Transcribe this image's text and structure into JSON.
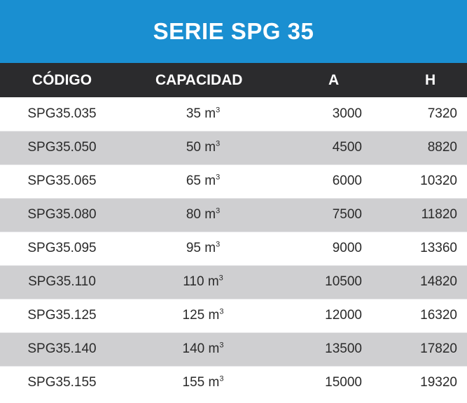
{
  "title": "SERIE SPG 35",
  "headers": {
    "code": "CÓDIGO",
    "capacity": "CAPACIDAD",
    "a": "A",
    "h": "H"
  },
  "unit": {
    "base": "m",
    "exponent": "3"
  },
  "rows": [
    {
      "code": "SPG35.035",
      "capacity": "35",
      "a": "3000",
      "h": "7320"
    },
    {
      "code": "SPG35.050",
      "capacity": "50",
      "a": "4500",
      "h": "8820"
    },
    {
      "code": "SPG35.065",
      "capacity": "65",
      "a": "6000",
      "h": "10320"
    },
    {
      "code": "SPG35.080",
      "capacity": "80",
      "a": "7500",
      "h": "11820"
    },
    {
      "code": "SPG35.095",
      "capacity": "95",
      "a": "9000",
      "h": "13360"
    },
    {
      "code": "SPG35.110",
      "capacity": "110",
      "a": "10500",
      "h": "14820"
    },
    {
      "code": "SPG35.125",
      "capacity": "125",
      "a": "12000",
      "h": "16320"
    },
    {
      "code": "SPG35.140",
      "capacity": "140",
      "a": "13500",
      "h": "17820"
    },
    {
      "code": "SPG35.155",
      "capacity": "155",
      "a": "15000",
      "h": "19320"
    }
  ],
  "colors": {
    "title_bg": "#1a8fd1",
    "header_bg": "#2b2b2d",
    "alt_row_bg": "#cfcfd1"
  }
}
